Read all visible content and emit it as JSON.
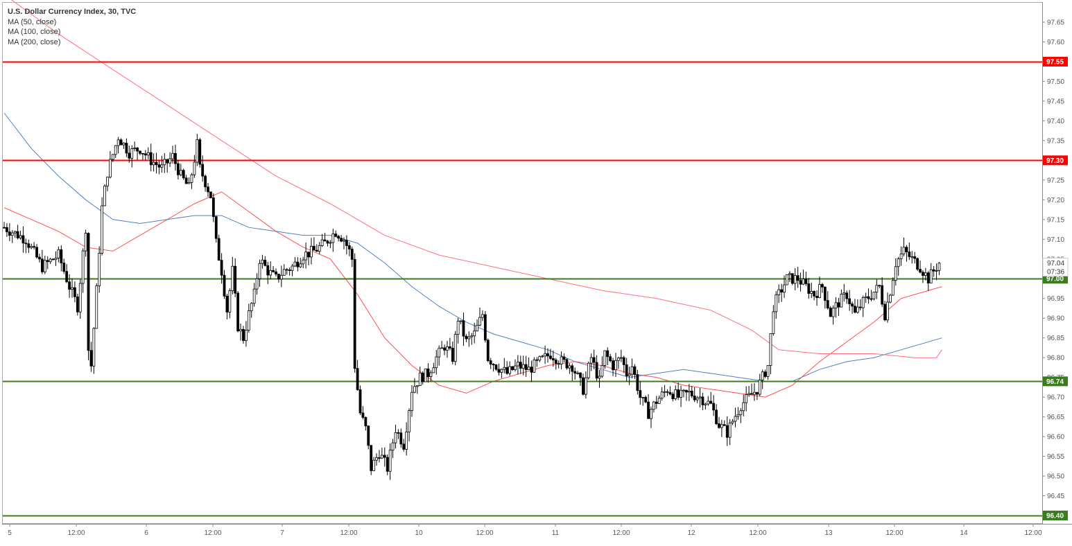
{
  "legend": {
    "title": "U.S. Dollar Currency Index, 30, TVC",
    "ma50": "MA (50, close)",
    "ma100": "MA (100, close)",
    "ma200": "MA (200, close)"
  },
  "colors": {
    "resistance": "#ff0000",
    "support": "#3a7d1f",
    "ma50": "#ff4d4d",
    "ma100": "#4f7fc4",
    "ma200": "#ff6f7f",
    "candle": "#000000"
  },
  "chart_data": {
    "type": "candlestick",
    "title": "U.S. Dollar Currency Index, 30, TVC",
    "ylim": [
      96.36,
      97.7
    ],
    "y_ticks": [
      "97.65",
      "97.60",
      "97.55",
      "97.50",
      "97.45",
      "97.40",
      "97.35",
      "97.30",
      "97.25",
      "97.20",
      "97.15",
      "97.10",
      "97.05",
      "97.00",
      "96.95",
      "96.90",
      "96.85",
      "96.80",
      "96.75",
      "96.70",
      "96.65",
      "96.60",
      "96.55",
      "96.50",
      "96.45",
      "96.40"
    ],
    "x_ticks": [
      "5",
      "12:00",
      "6",
      "12:00",
      "7",
      "12:00",
      "10",
      "12:00",
      "11",
      "12:00",
      "12",
      "12:00",
      "13",
      "12:00",
      "14",
      "12:00"
    ],
    "last_price": "97.04",
    "countdown": "07:36",
    "levels": [
      {
        "value": 97.55,
        "label": "97.55",
        "kind": "resistance"
      },
      {
        "value": 97.3,
        "label": "97.30",
        "kind": "resistance"
      },
      {
        "value": 97.0,
        "label": "97.00",
        "kind": "support"
      },
      {
        "value": 96.74,
        "label": "96.74",
        "kind": "support"
      },
      {
        "value": 96.4,
        "label": "96.40",
        "kind": "support"
      }
    ],
    "price_path": [
      {
        "x": 0,
        "y": 97.13
      },
      {
        "x": 8,
        "y": 97.1
      },
      {
        "x": 14,
        "y": 97.03
      },
      {
        "x": 20,
        "y": 97.06
      },
      {
        "x": 24,
        "y": 96.98
      },
      {
        "x": 27,
        "y": 96.93
      },
      {
        "x": 30,
        "y": 97.13
      },
      {
        "x": 31,
        "y": 96.82
      },
      {
        "x": 32,
        "y": 96.78
      },
      {
        "x": 34,
        "y": 96.97
      },
      {
        "x": 36,
        "y": 97.18
      },
      {
        "x": 38,
        "y": 97.27
      },
      {
        "x": 42,
        "y": 97.36
      },
      {
        "x": 46,
        "y": 97.32
      },
      {
        "x": 50,
        "y": 97.33
      },
      {
        "x": 54,
        "y": 97.3
      },
      {
        "x": 58,
        "y": 97.28
      },
      {
        "x": 62,
        "y": 97.31
      },
      {
        "x": 65,
        "y": 97.26
      },
      {
        "x": 68,
        "y": 97.23
      },
      {
        "x": 71,
        "y": 97.34
      },
      {
        "x": 72,
        "y": 97.28
      },
      {
        "x": 76,
        "y": 97.21
      },
      {
        "x": 78,
        "y": 97.09
      },
      {
        "x": 80,
        "y": 97.02
      },
      {
        "x": 82,
        "y": 96.92
      },
      {
        "x": 84,
        "y": 97.02
      },
      {
        "x": 86,
        "y": 96.88
      },
      {
        "x": 88,
        "y": 96.85
      },
      {
        "x": 90,
        "y": 96.91
      },
      {
        "x": 92,
        "y": 96.96
      },
      {
        "x": 94,
        "y": 97.05
      },
      {
        "x": 97,
        "y": 97.02
      },
      {
        "x": 100,
        "y": 97.0
      },
      {
        "x": 103,
        "y": 97.02
      },
      {
        "x": 106,
        "y": 97.03
      },
      {
        "x": 110,
        "y": 97.06
      },
      {
        "x": 114,
        "y": 97.07
      },
      {
        "x": 118,
        "y": 97.09
      },
      {
        "x": 122,
        "y": 97.12
      },
      {
        "x": 125,
        "y": 97.1
      },
      {
        "x": 127,
        "y": 97.07
      },
      {
        "x": 128,
        "y": 97.05
      },
      {
        "x": 129,
        "y": 96.78
      },
      {
        "x": 131,
        "y": 96.66
      },
      {
        "x": 133,
        "y": 96.62
      },
      {
        "x": 135,
        "y": 96.52
      },
      {
        "x": 138,
        "y": 96.56
      },
      {
        "x": 141,
        "y": 96.52
      },
      {
        "x": 144,
        "y": 96.62
      },
      {
        "x": 147,
        "y": 96.58
      },
      {
        "x": 150,
        "y": 96.72
      },
      {
        "x": 153,
        "y": 96.75
      },
      {
        "x": 156,
        "y": 96.76
      },
      {
        "x": 159,
        "y": 96.8
      },
      {
        "x": 162,
        "y": 96.83
      },
      {
        "x": 165,
        "y": 96.8
      },
      {
        "x": 167,
        "y": 96.9
      },
      {
        "x": 170,
        "y": 96.84
      },
      {
        "x": 173,
        "y": 96.86
      },
      {
        "x": 176,
        "y": 96.91
      },
      {
        "x": 178,
        "y": 96.8
      },
      {
        "x": 181,
        "y": 96.78
      },
      {
        "x": 185,
        "y": 96.76
      },
      {
        "x": 189,
        "y": 96.78
      },
      {
        "x": 193,
        "y": 96.77
      },
      {
        "x": 197,
        "y": 96.79
      },
      {
        "x": 201,
        "y": 96.81
      },
      {
        "x": 205,
        "y": 96.79
      },
      {
        "x": 209,
        "y": 96.78
      },
      {
        "x": 213,
        "y": 96.72
      },
      {
        "x": 216,
        "y": 96.8
      },
      {
        "x": 219,
        "y": 96.74
      },
      {
        "x": 221,
        "y": 96.81
      },
      {
        "x": 224,
        "y": 96.78
      },
      {
        "x": 227,
        "y": 96.8
      },
      {
        "x": 229,
        "y": 96.76
      },
      {
        "x": 231,
        "y": 96.78
      },
      {
        "x": 234,
        "y": 96.7
      },
      {
        "x": 237,
        "y": 96.66
      },
      {
        "x": 240,
        "y": 96.69
      },
      {
        "x": 244,
        "y": 96.72
      },
      {
        "x": 248,
        "y": 96.7
      },
      {
        "x": 252,
        "y": 96.71
      },
      {
        "x": 256,
        "y": 96.7
      },
      {
        "x": 260,
        "y": 96.68
      },
      {
        "x": 263,
        "y": 96.63
      },
      {
        "x": 266,
        "y": 96.61
      },
      {
        "x": 268,
        "y": 96.64
      },
      {
        "x": 271,
        "y": 96.68
      },
      {
        "x": 274,
        "y": 96.7
      },
      {
        "x": 277,
        "y": 96.72
      },
      {
        "x": 279,
        "y": 96.75
      },
      {
        "x": 281,
        "y": 96.78
      },
      {
        "x": 283,
        "y": 96.93
      },
      {
        "x": 285,
        "y": 96.96
      },
      {
        "x": 288,
        "y": 97.0
      },
      {
        "x": 292,
        "y": 97.0
      },
      {
        "x": 295,
        "y": 96.98
      },
      {
        "x": 298,
        "y": 96.96
      },
      {
        "x": 301,
        "y": 96.98
      },
      {
        "x": 304,
        "y": 96.91
      },
      {
        "x": 307,
        "y": 96.94
      },
      {
        "x": 310,
        "y": 96.96
      },
      {
        "x": 313,
        "y": 96.91
      },
      {
        "x": 316,
        "y": 96.94
      },
      {
        "x": 319,
        "y": 96.96
      },
      {
        "x": 322,
        "y": 96.98
      },
      {
        "x": 324,
        "y": 96.91
      },
      {
        "x": 326,
        "y": 96.97
      },
      {
        "x": 328,
        "y": 97.04
      },
      {
        "x": 331,
        "y": 97.07
      },
      {
        "x": 334,
        "y": 97.05
      },
      {
        "x": 337,
        "y": 97.03
      },
      {
        "x": 340,
        "y": 97.0
      },
      {
        "x": 342,
        "y": 97.02
      },
      {
        "x": 344,
        "y": 97.04
      }
    ],
    "series": [
      {
        "name": "MA (50, close)",
        "points": [
          {
            "x": 0,
            "y": 97.18
          },
          {
            "x": 20,
            "y": 97.12
          },
          {
            "x": 30,
            "y": 97.08
          },
          {
            "x": 40,
            "y": 97.07
          },
          {
            "x": 55,
            "y": 97.13
          },
          {
            "x": 70,
            "y": 97.19
          },
          {
            "x": 80,
            "y": 97.22
          },
          {
            "x": 90,
            "y": 97.17
          },
          {
            "x": 100,
            "y": 97.12
          },
          {
            "x": 110,
            "y": 97.08
          },
          {
            "x": 120,
            "y": 97.05
          },
          {
            "x": 130,
            "y": 96.96
          },
          {
            "x": 140,
            "y": 96.85
          },
          {
            "x": 150,
            "y": 96.78
          },
          {
            "x": 160,
            "y": 96.73
          },
          {
            "x": 170,
            "y": 96.71
          },
          {
            "x": 180,
            "y": 96.74
          },
          {
            "x": 190,
            "y": 96.76
          },
          {
            "x": 200,
            "y": 96.78
          },
          {
            "x": 210,
            "y": 96.79
          },
          {
            "x": 220,
            "y": 96.78
          },
          {
            "x": 230,
            "y": 96.76
          },
          {
            "x": 240,
            "y": 96.75
          },
          {
            "x": 250,
            "y": 96.73
          },
          {
            "x": 260,
            "y": 96.72
          },
          {
            "x": 270,
            "y": 96.71
          },
          {
            "x": 280,
            "y": 96.7
          },
          {
            "x": 290,
            "y": 96.73
          },
          {
            "x": 300,
            "y": 96.79
          },
          {
            "x": 310,
            "y": 96.84
          },
          {
            "x": 320,
            "y": 96.89
          },
          {
            "x": 330,
            "y": 96.95
          },
          {
            "x": 345,
            "y": 96.98
          }
        ]
      },
      {
        "name": "MA (100, close)",
        "points": [
          {
            "x": 0,
            "y": 97.42
          },
          {
            "x": 10,
            "y": 97.33
          },
          {
            "x": 20,
            "y": 97.26
          },
          {
            "x": 30,
            "y": 97.2
          },
          {
            "x": 40,
            "y": 97.15
          },
          {
            "x": 50,
            "y": 97.14
          },
          {
            "x": 60,
            "y": 97.15
          },
          {
            "x": 70,
            "y": 97.16
          },
          {
            "x": 80,
            "y": 97.16
          },
          {
            "x": 90,
            "y": 97.13
          },
          {
            "x": 100,
            "y": 97.12
          },
          {
            "x": 110,
            "y": 97.11
          },
          {
            "x": 120,
            "y": 97.11
          },
          {
            "x": 130,
            "y": 97.09
          },
          {
            "x": 140,
            "y": 97.04
          },
          {
            "x": 150,
            "y": 96.98
          },
          {
            "x": 160,
            "y": 96.93
          },
          {
            "x": 170,
            "y": 96.89
          },
          {
            "x": 180,
            "y": 96.86
          },
          {
            "x": 190,
            "y": 96.84
          },
          {
            "x": 200,
            "y": 96.82
          },
          {
            "x": 210,
            "y": 96.79
          },
          {
            "x": 220,
            "y": 96.77
          },
          {
            "x": 230,
            "y": 96.75
          },
          {
            "x": 240,
            "y": 96.76
          },
          {
            "x": 250,
            "y": 96.77
          },
          {
            "x": 260,
            "y": 96.76
          },
          {
            "x": 270,
            "y": 96.75
          },
          {
            "x": 280,
            "y": 96.74
          },
          {
            "x": 290,
            "y": 96.74
          },
          {
            "x": 300,
            "y": 96.77
          },
          {
            "x": 310,
            "y": 96.79
          },
          {
            "x": 320,
            "y": 96.8
          },
          {
            "x": 330,
            "y": 96.82
          },
          {
            "x": 345,
            "y": 96.85
          }
        ]
      },
      {
        "name": "MA (200, close)",
        "points": [
          {
            "x": 0,
            "y": 97.72
          },
          {
            "x": 20,
            "y": 97.62
          },
          {
            "x": 40,
            "y": 97.53
          },
          {
            "x": 60,
            "y": 97.44
          },
          {
            "x": 80,
            "y": 97.35
          },
          {
            "x": 100,
            "y": 97.26
          },
          {
            "x": 120,
            "y": 97.19
          },
          {
            "x": 140,
            "y": 97.11
          },
          {
            "x": 160,
            "y": 97.06
          },
          {
            "x": 180,
            "y": 97.03
          },
          {
            "x": 200,
            "y": 97.0
          },
          {
            "x": 220,
            "y": 96.97
          },
          {
            "x": 240,
            "y": 96.95
          },
          {
            "x": 260,
            "y": 96.92
          },
          {
            "x": 275,
            "y": 96.87
          },
          {
            "x": 285,
            "y": 96.82
          },
          {
            "x": 300,
            "y": 96.81
          },
          {
            "x": 320,
            "y": 96.81
          },
          {
            "x": 335,
            "y": 96.8
          },
          {
            "x": 343,
            "y": 96.8
          },
          {
            "x": 345,
            "y": 96.82
          }
        ]
      }
    ]
  }
}
